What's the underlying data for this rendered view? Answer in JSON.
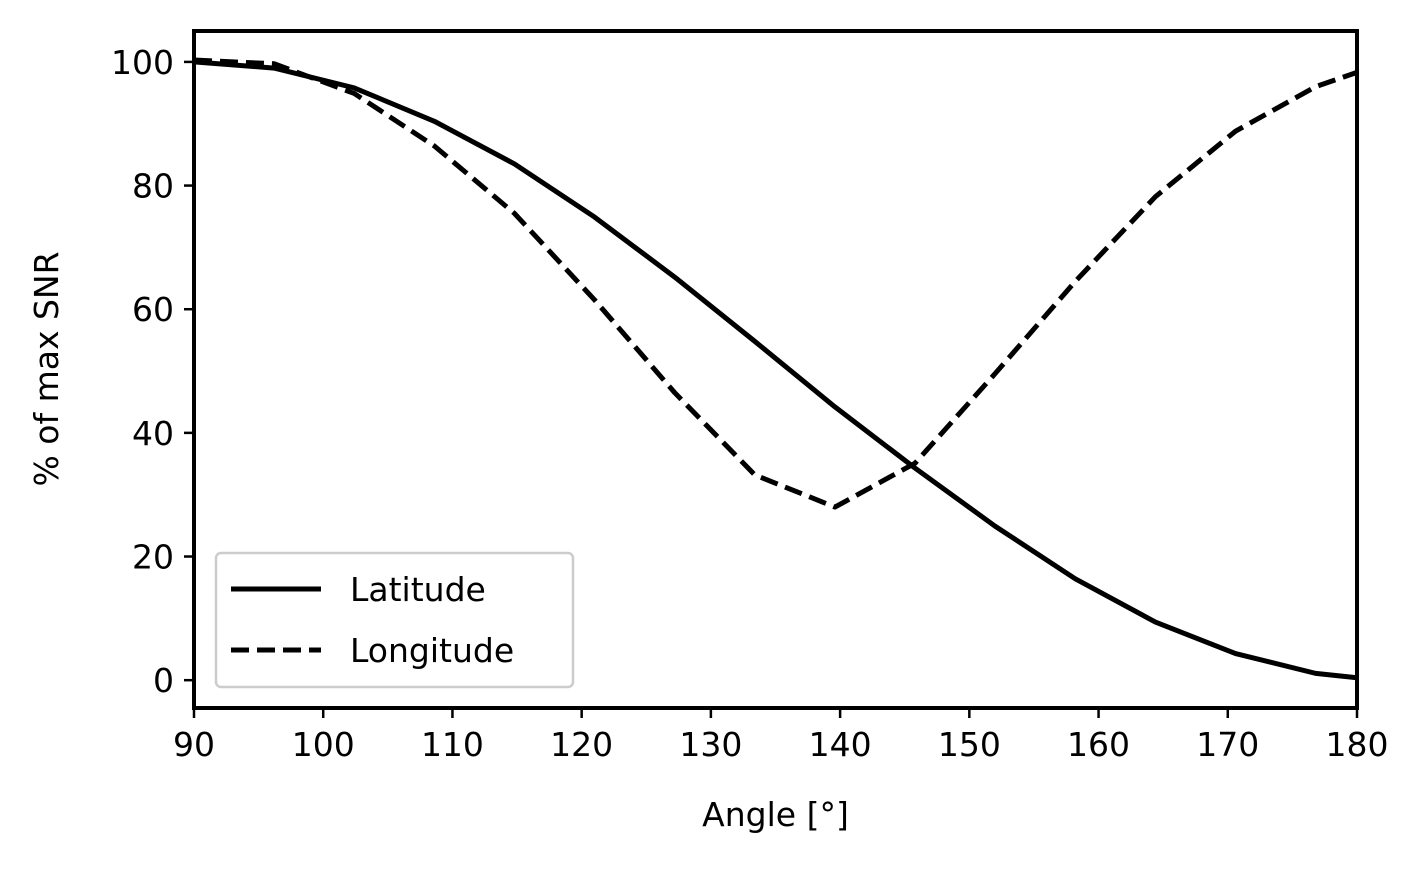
{
  "chart_data": {
    "type": "line",
    "title": "",
    "xlabel": "Angle [°]",
    "ylabel": "% of max SNR",
    "xlim": [
      90,
      180
    ],
    "ylim": [
      -4.5,
      105
    ],
    "xticks": [
      90,
      100,
      110,
      120,
      130,
      140,
      150,
      160,
      170,
      180
    ],
    "yticks": [
      0,
      20,
      40,
      60,
      80,
      100
    ],
    "grid": false,
    "legend_position": "lower-left",
    "series": [
      {
        "name": "Latitude",
        "style": "solid",
        "color": "#000000",
        "x": [
          90,
          96.2,
          102.4,
          108.6,
          114.8,
          121.0,
          127.2,
          133.4,
          139.6,
          145.8,
          152.0,
          158.2,
          164.4,
          170.6,
          176.8,
          180
        ],
        "y": [
          100,
          99,
          95.8,
          90.4,
          83.5,
          74.9,
          65.2,
          54.8,
          44.2,
          34.3,
          24.9,
          16.4,
          9.4,
          4.3,
          1.1,
          0.4
        ]
      },
      {
        "name": "Longitude",
        "style": "dashed",
        "color": "#000000",
        "x": [
          90,
          96.2,
          102.4,
          108.6,
          114.8,
          121.0,
          127.2,
          133.4,
          139.6,
          145.8,
          152.0,
          158.2,
          164.4,
          170.6,
          176.8,
          180
        ],
        "y": [
          100.3,
          99.7,
          94.9,
          86.4,
          75.5,
          61.5,
          46.5,
          33.2,
          28,
          35.1,
          49.6,
          64.5,
          78.2,
          88.8,
          96,
          98.3
        ]
      }
    ]
  }
}
